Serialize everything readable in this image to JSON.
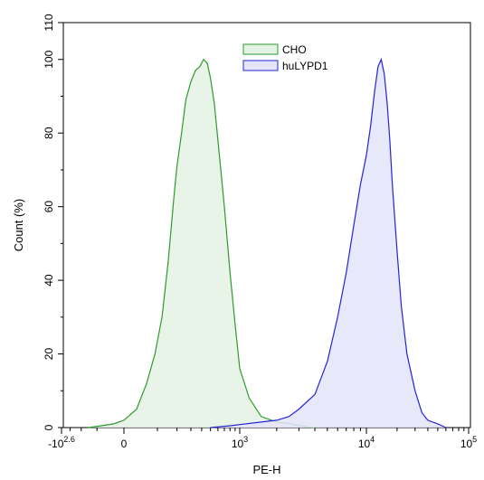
{
  "chart_data": {
    "type": "area",
    "xlabel": "PE-H",
    "ylabel": "Count (%)",
    "ylim": [
      0,
      110
    ],
    "grid": false,
    "legend_position": "top-center",
    "x_scale": "biexponential",
    "x_ticks": [
      {
        "base": "-10",
        "exp": "2.6",
        "value": -398
      },
      {
        "base": "0",
        "exp": "",
        "value": 0
      },
      {
        "base": "10",
        "exp": "3",
        "value": 1000
      },
      {
        "base": "10",
        "exp": "4",
        "value": 10000
      },
      {
        "base": "10",
        "exp": "5",
        "value": 100000
      }
    ],
    "y_ticks": [
      {
        "label": "0",
        "value": 0
      },
      {
        "label": "20",
        "value": 20
      },
      {
        "label": "40",
        "value": 40
      },
      {
        "label": "60",
        "value": 60
      },
      {
        "label": "80",
        "value": 80
      },
      {
        "label": "100",
        "value": 100
      },
      {
        "label": "110",
        "value": 110
      }
    ],
    "series": [
      {
        "name": "CHO",
        "line_color": "#2e9a2e",
        "fill_color": "#e4f2e4",
        "x": [
          -150,
          -80,
          -30,
          0,
          30,
          60,
          90,
          120,
          150,
          180,
          200,
          230,
          260,
          300,
          340,
          380,
          420,
          460,
          500,
          550,
          600,
          700,
          800,
          900,
          1000,
          1200,
          1500,
          2000,
          2500,
          3000,
          4000
        ],
        "y": [
          0,
          0.5,
          1,
          2,
          5,
          12,
          20,
          30,
          45,
          62,
          71,
          80,
          89,
          94,
          97,
          98,
          100,
          99,
          95,
          88,
          78,
          60,
          42,
          28,
          16,
          8,
          3,
          1.5,
          1.2,
          0.5,
          0
        ]
      },
      {
        "name": "huLYPD1",
        "line_color": "#2424d6",
        "fill_color": "#e4e4fa",
        "x": [
          500,
          800,
          1000,
          1500,
          2000,
          2500,
          3000,
          4000,
          5000,
          6000,
          7000,
          8000,
          9000,
          10000,
          11000,
          12000,
          13000,
          14000,
          15000,
          16000,
          17000,
          18000,
          20000,
          22000,
          25000,
          30000,
          35000,
          40000,
          50000,
          60000
        ],
        "y": [
          0,
          0.5,
          0.8,
          1.5,
          2,
          3,
          5,
          9,
          18,
          30,
          42,
          55,
          66,
          74,
          82,
          91,
          98,
          100,
          96,
          88,
          78,
          66,
          48,
          33,
          20,
          10,
          4,
          2,
          1,
          0
        ]
      }
    ]
  }
}
